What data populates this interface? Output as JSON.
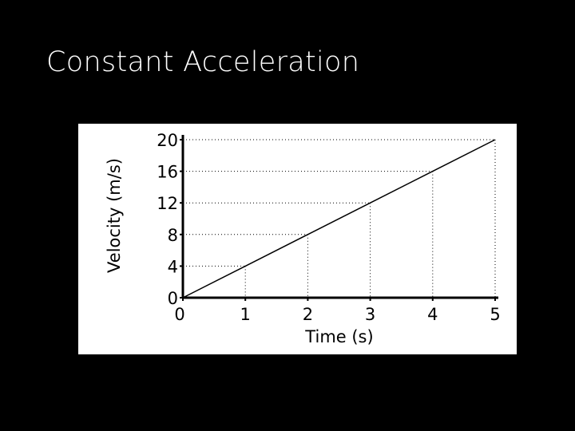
{
  "title": "Constant Acceleration",
  "chart_data": {
    "type": "line",
    "x": [
      0,
      1,
      2,
      3,
      4,
      5
    ],
    "values": [
      0,
      4,
      8,
      12,
      16,
      20
    ],
    "color": "#000000",
    "xlabel": "Time (s)",
    "ylabel": "Velocity (m/s)",
    "xlim": [
      0,
      5
    ],
    "ylim": [
      0,
      20
    ],
    "xticks": [
      0,
      1,
      2,
      3,
      4,
      5
    ],
    "yticks": [
      0,
      4,
      8,
      12,
      16,
      20
    ],
    "drop_lines": true
  }
}
